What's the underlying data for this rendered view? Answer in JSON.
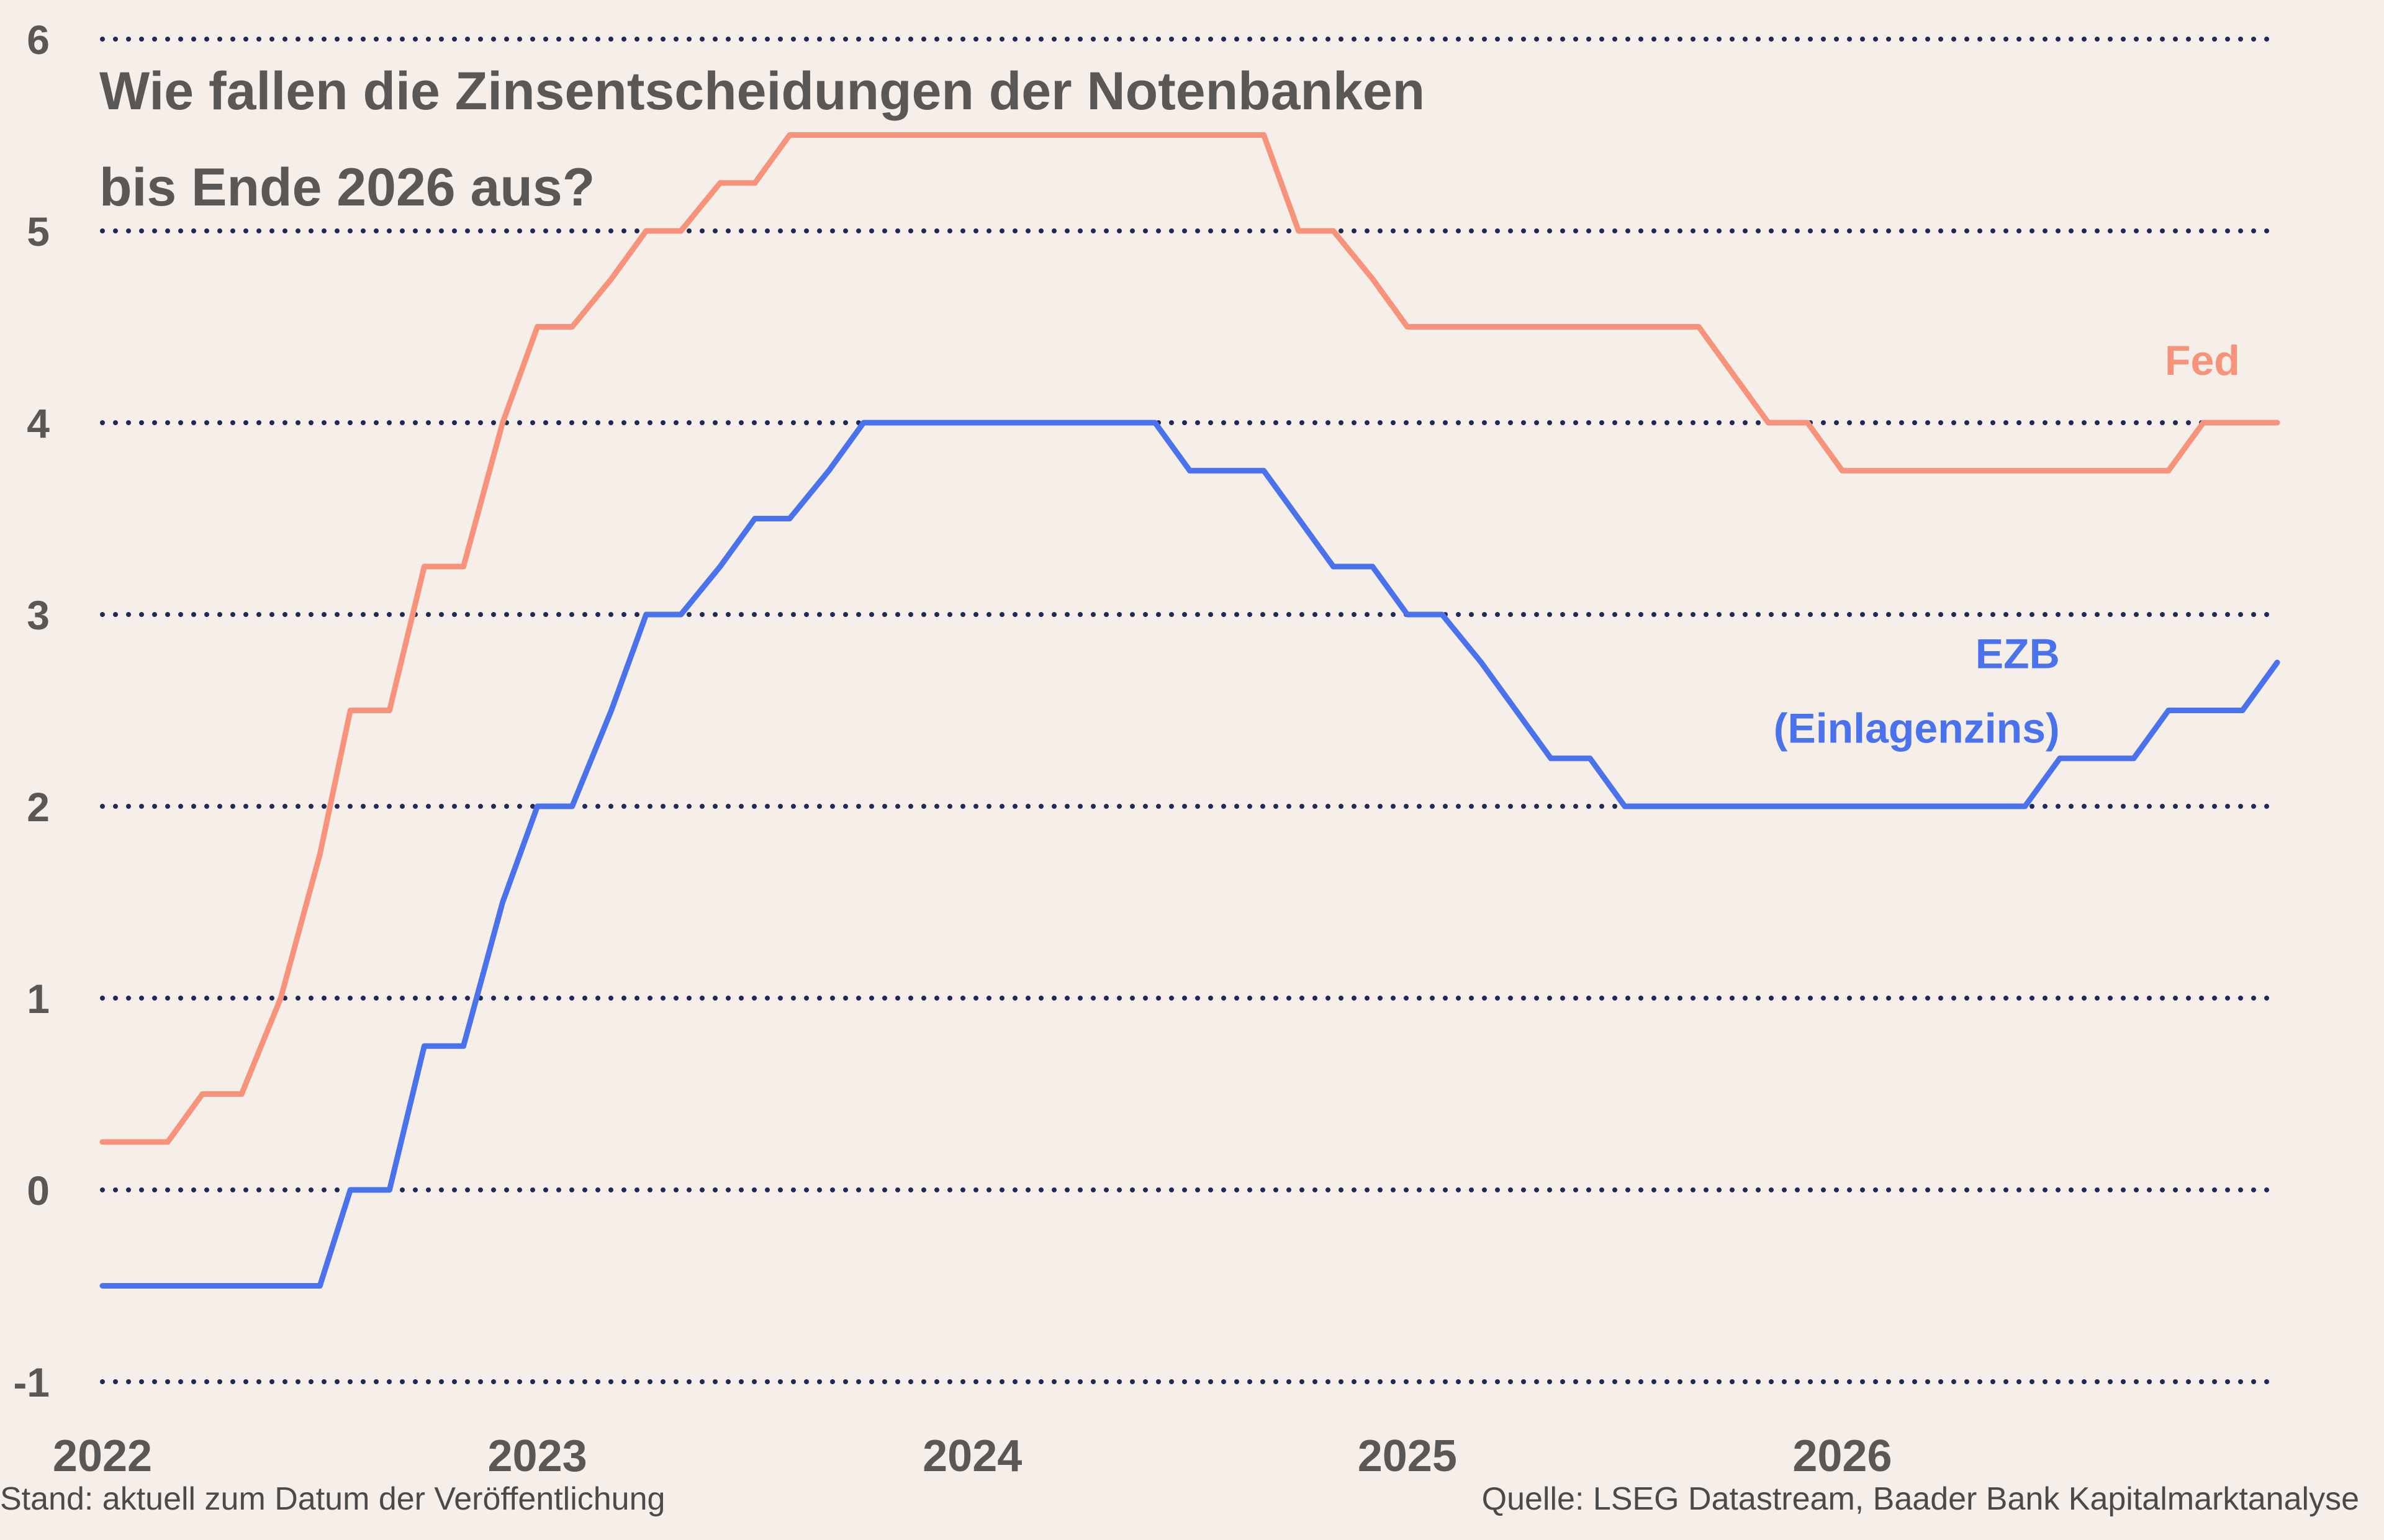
{
  "chart_data": {
    "type": "line",
    "title": "Wie fallen die Zinsentscheidungen der Notenbanken bis Ende 2026 aus?",
    "title_lines": [
      "Wie fallen die Zinsentscheidungen der Notenbanken",
      "bis Ende 2026 aus?"
    ],
    "xlabel": "",
    "ylabel": "",
    "xlim": [
      2022.0,
      2027.0
    ],
    "ylim": [
      -1,
      6
    ],
    "yticks": [
      -1,
      0,
      1,
      2,
      3,
      4,
      5,
      6
    ],
    "xticks": [
      2022,
      2023,
      2024,
      2025,
      2026
    ],
    "grid": "horizontal dotted",
    "series": [
      {
        "name": "Fed",
        "label_lines": [
          "Fed"
        ],
        "color": "#f7937a",
        "x": [
          2022.0,
          2022.15,
          2022.23,
          2022.32,
          2022.41,
          2022.5,
          2022.57,
          2022.66,
          2022.74,
          2022.83,
          2022.92,
          2023.0,
          2023.08,
          2023.17,
          2023.25,
          2023.33,
          2023.42,
          2023.5,
          2023.58,
          2024.67,
          2024.75,
          2024.83,
          2024.92,
          2025.0,
          2025.67,
          2025.83,
          2025.92,
          2026.0,
          2026.75,
          2026.83,
          2027.0
        ],
        "values": [
          0.25,
          0.25,
          0.5,
          0.5,
          1.0,
          1.75,
          2.5,
          2.5,
          3.25,
          3.25,
          4.0,
          4.5,
          4.5,
          4.75,
          5.0,
          5.0,
          5.25,
          5.25,
          5.5,
          5.5,
          5.0,
          5.0,
          4.75,
          4.5,
          4.5,
          4.0,
          4.0,
          3.75,
          3.75,
          4.0,
          4.0
        ]
      },
      {
        "name": "EZB (Einlagenzins)",
        "label_lines": [
          "EZB",
          "(Einlagenzins)"
        ],
        "color": "#4a72ec",
        "x": [
          2022.0,
          2022.5,
          2022.57,
          2022.66,
          2022.74,
          2022.83,
          2022.92,
          2023.0,
          2023.08,
          2023.17,
          2023.25,
          2023.33,
          2023.42,
          2023.5,
          2023.58,
          2023.67,
          2023.75,
          2024.42,
          2024.5,
          2024.67,
          2024.83,
          2024.92,
          2025.0,
          2025.08,
          2025.17,
          2025.33,
          2025.42,
          2025.5,
          2026.42,
          2026.5,
          2026.67,
          2026.75,
          2026.92,
          2027.0
        ],
        "values": [
          -0.5,
          -0.5,
          0.0,
          0.0,
          0.75,
          0.75,
          1.5,
          2.0,
          2.0,
          2.5,
          3.0,
          3.0,
          3.25,
          3.5,
          3.5,
          3.75,
          4.0,
          4.0,
          3.75,
          3.75,
          3.25,
          3.25,
          3.0,
          3.0,
          2.75,
          2.25,
          2.25,
          2.0,
          2.0,
          2.25,
          2.25,
          2.5,
          2.5,
          2.75
        ]
      }
    ]
  },
  "footer": {
    "left": "Stand: aktuell zum Datum der Veröffentlichung",
    "right": "Quelle: LSEG Datastream, Baader Bank Kapitalmarktanalyse"
  },
  "colors": {
    "background": "#f5eee9",
    "grid": "#1f2a55",
    "axis_text": "#5a5856"
  }
}
